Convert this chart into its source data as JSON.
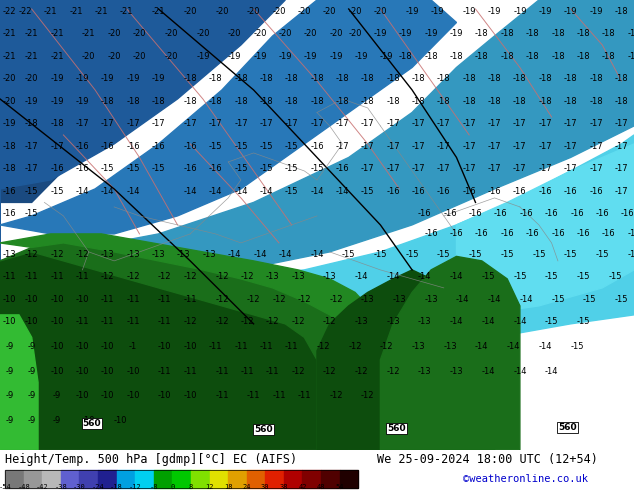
{
  "title_left": "Height/Temp. 500 hPa [gdmp][°C] EC (AIFS)",
  "title_right": "We 25-09-2024 18:00 UTC (12+54)",
  "credit": "©weatheronline.co.uk",
  "colorbar_tick_labels": [
    "-54",
    "-48",
    "-42",
    "-38",
    "-30",
    "-24",
    "-18",
    "-12",
    "-8",
    "0",
    "8",
    "12",
    "18",
    "24",
    "30",
    "38",
    "42",
    "48",
    "54"
  ],
  "colorbar_colors": [
    "#787878",
    "#989898",
    "#b8b8b8",
    "#6060d0",
    "#4040b0",
    "#202090",
    "#00a0e0",
    "#00d0f0",
    "#00a000",
    "#00c800",
    "#80e000",
    "#e0e000",
    "#e0a000",
    "#e06000",
    "#e02000",
    "#b00000",
    "#800000",
    "#500000",
    "#200000"
  ],
  "bg_color_top": "#1a5a8a",
  "bg_color_mid": "#2090c0",
  "bg_color_light": "#40c0e0",
  "bg_color_cyan": "#60d8e8",
  "green_dark1": "#0a4a0a",
  "green_dark2": "#1a6a1a",
  "green_mid": "#2a8a2a",
  "green_light": "#3aaa3a",
  "title_fontsize": 8.5,
  "credit_color": "#0000cc",
  "credit_fontsize": 7.5,
  "label_fontsize": 6.0
}
